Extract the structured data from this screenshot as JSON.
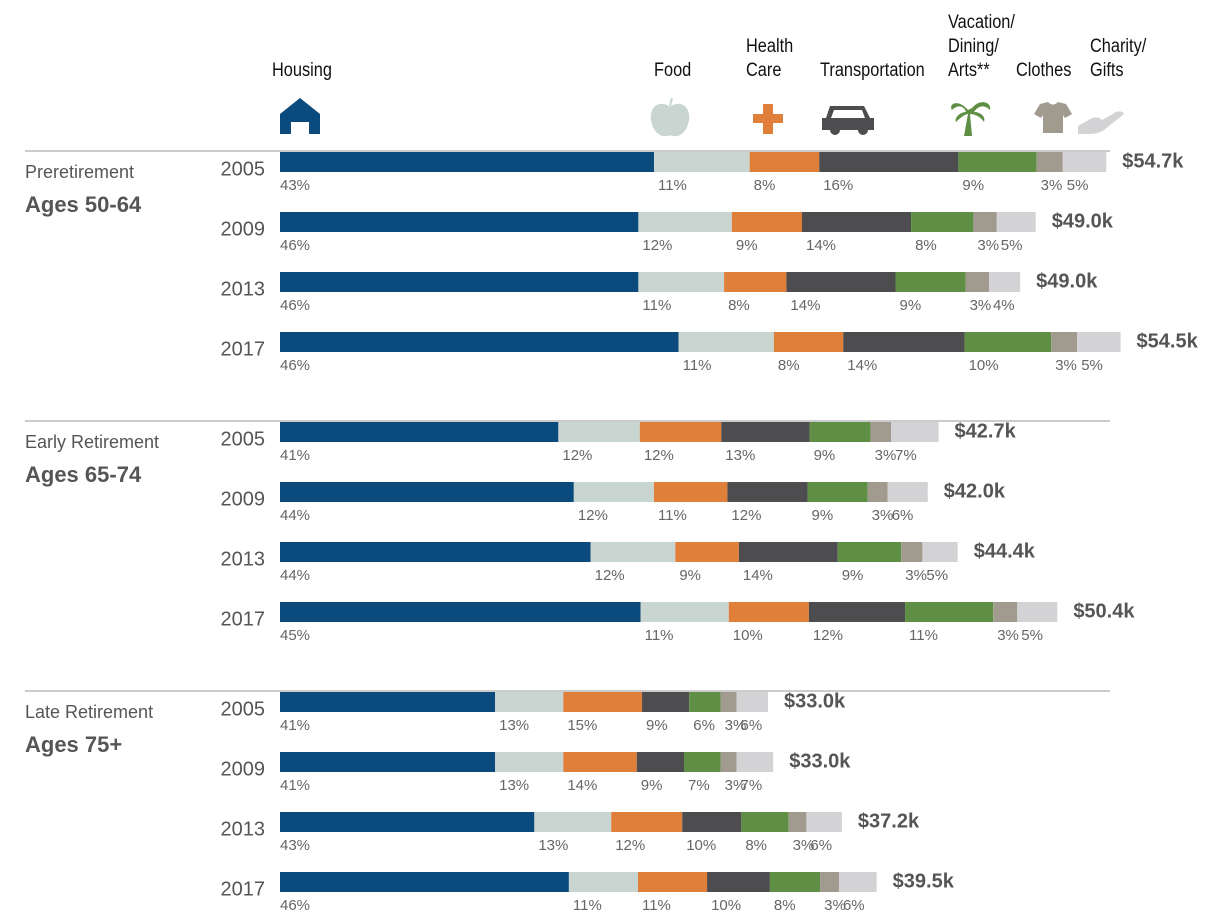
{
  "chart_data": {
    "type": "bar",
    "orientation": "horizontal",
    "stacked": true,
    "series": [
      {
        "name": "Housing",
        "color": "#0b4a7d"
      },
      {
        "name": "Food",
        "color": "#c8d5d1"
      },
      {
        "name": "Health\nCare",
        "color": "#e07f3a"
      },
      {
        "name": "Transportation",
        "color": "#4d4d4f"
      },
      {
        "name": "Vacation/\nDining/\nArts**",
        "color": "#5e8f45"
      },
      {
        "name": "Clothes",
        "color": "#a19a8f"
      },
      {
        "name": "Charity/\nGifts",
        "color": "#d3d3d5"
      }
    ],
    "groups": [
      {
        "label": "Preretirement",
        "sublabel": "Ages 50-64",
        "rows": [
          {
            "year": "2005",
            "values": [
              43,
              11,
              8,
              16,
              9,
              3,
              5
            ],
            "value_labels": [
              "43%",
              "11%",
              "8%",
              "16%",
              "9%",
              "3%",
              "5%"
            ],
            "total": 54.7,
            "total_label": "$54.7k"
          },
          {
            "year": "2009",
            "values": [
              46,
              12,
              9,
              14,
              8,
              3,
              5
            ],
            "value_labels": [
              "46%",
              "12%",
              "9%",
              "14%",
              "8%",
              "3%",
              "5%"
            ],
            "total": 49,
            "total_label": "$49.0k"
          },
          {
            "year": "2013",
            "values": [
              46,
              11,
              8,
              14,
              9,
              3,
              4
            ],
            "value_labels": [
              "46%",
              "11%",
              "8%",
              "14%",
              "9%",
              "3%",
              "4%"
            ],
            "total": 49,
            "total_label": "$49.0k"
          },
          {
            "year": "2017",
            "values": [
              46,
              11,
              8,
              14,
              10,
              3,
              5
            ],
            "value_labels": [
              "46%",
              "11%",
              "8%",
              "14%",
              "10%",
              "3%",
              "5%"
            ],
            "total": 54.5,
            "total_label": "$54.5k"
          }
        ]
      },
      {
        "label": "Early Retirement",
        "sublabel": "Ages 65-74",
        "rows": [
          {
            "year": "2005",
            "values": [
              41,
              12,
              12,
              13,
              9,
              3,
              7
            ],
            "value_labels": [
              "41%",
              "12%",
              "12%",
              "13%",
              "9%",
              "3%",
              "7%"
            ],
            "total": 42.7,
            "total_label": "$42.7k"
          },
          {
            "year": "2009",
            "values": [
              44,
              12,
              11,
              12,
              9,
              3,
              6
            ],
            "value_labels": [
              "44%",
              "12%",
              "11%",
              "12%",
              "9%",
              "3%",
              "6%"
            ],
            "total": 42,
            "total_label": "$42.0k"
          },
          {
            "year": "2013",
            "values": [
              44,
              12,
              9,
              14,
              9,
              3,
              5
            ],
            "value_labels": [
              "44%",
              "12%",
              "9%",
              "14%",
              "9%",
              "3%",
              "5%"
            ],
            "total": 44.4,
            "total_label": "$44.4k"
          },
          {
            "year": "2017",
            "values": [
              45,
              11,
              10,
              12,
              11,
              3,
              5
            ],
            "value_labels": [
              "45%",
              "11%",
              "10%",
              "12%",
              "11%",
              "3%",
              "5%"
            ],
            "total": 50.4,
            "total_label": "$50.4k"
          }
        ]
      },
      {
        "label": "Late Retirement",
        "sublabel": "Ages 75+",
        "rows": [
          {
            "year": "2005",
            "values": [
              41,
              13,
              15,
              9,
              6,
              3,
              6
            ],
            "value_labels": [
              "41%",
              "13%",
              "15%",
              "9%",
              "6%",
              "3%",
              "6%"
            ],
            "total": 33,
            "total_label": "$33.0k"
          },
          {
            "year": "2009",
            "values": [
              41,
              13,
              14,
              9,
              7,
              3,
              7
            ],
            "value_labels": [
              "41%",
              "13%",
              "14%",
              "9%",
              "7%",
              "3%",
              "7%"
            ],
            "total": 33,
            "total_label": "$33.0k"
          },
          {
            "year": "2013",
            "values": [
              43,
              13,
              12,
              10,
              8,
              3,
              6
            ],
            "value_labels": [
              "43%",
              "13%",
              "12%",
              "10%",
              "8%",
              "3%",
              "6%"
            ],
            "total": 37.2,
            "total_label": "$37.2k"
          },
          {
            "year": "2017",
            "values": [
              46,
              11,
              11,
              10,
              8,
              3,
              6
            ],
            "value_labels": [
              "46%",
              "11%",
              "11%",
              "10%",
              "8%",
              "3%",
              "6%"
            ],
            "total": 39.5,
            "total_label": "$39.5k"
          }
        ]
      }
    ]
  }
}
